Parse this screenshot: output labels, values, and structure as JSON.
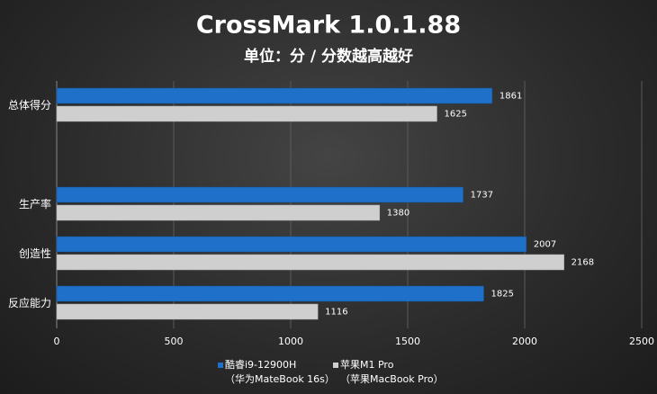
{
  "chart_data": {
    "type": "hbar",
    "title": "CrossMark 1.0.1.88",
    "subtitle": "单位：分 / 分数越高越好",
    "categories": [
      "总体得分",
      null,
      "生产率",
      "创造性",
      "反应能力"
    ],
    "series": [
      {
        "name": "酷睿i9-12900H\n（华为MateBook 16s）",
        "color": "#1f70c8",
        "values": [
          1861,
          null,
          1737,
          2007,
          1825
        ]
      },
      {
        "name": "苹果M1 Pro\n（苹果MacBook Pro）",
        "color": "#cfcfcf",
        "values": [
          1625,
          null,
          1380,
          2168,
          1116
        ]
      }
    ],
    "xlim": [
      0,
      2500
    ],
    "xticks": [
      0,
      500,
      1000,
      1500,
      2000,
      2500
    ],
    "grid": true
  }
}
